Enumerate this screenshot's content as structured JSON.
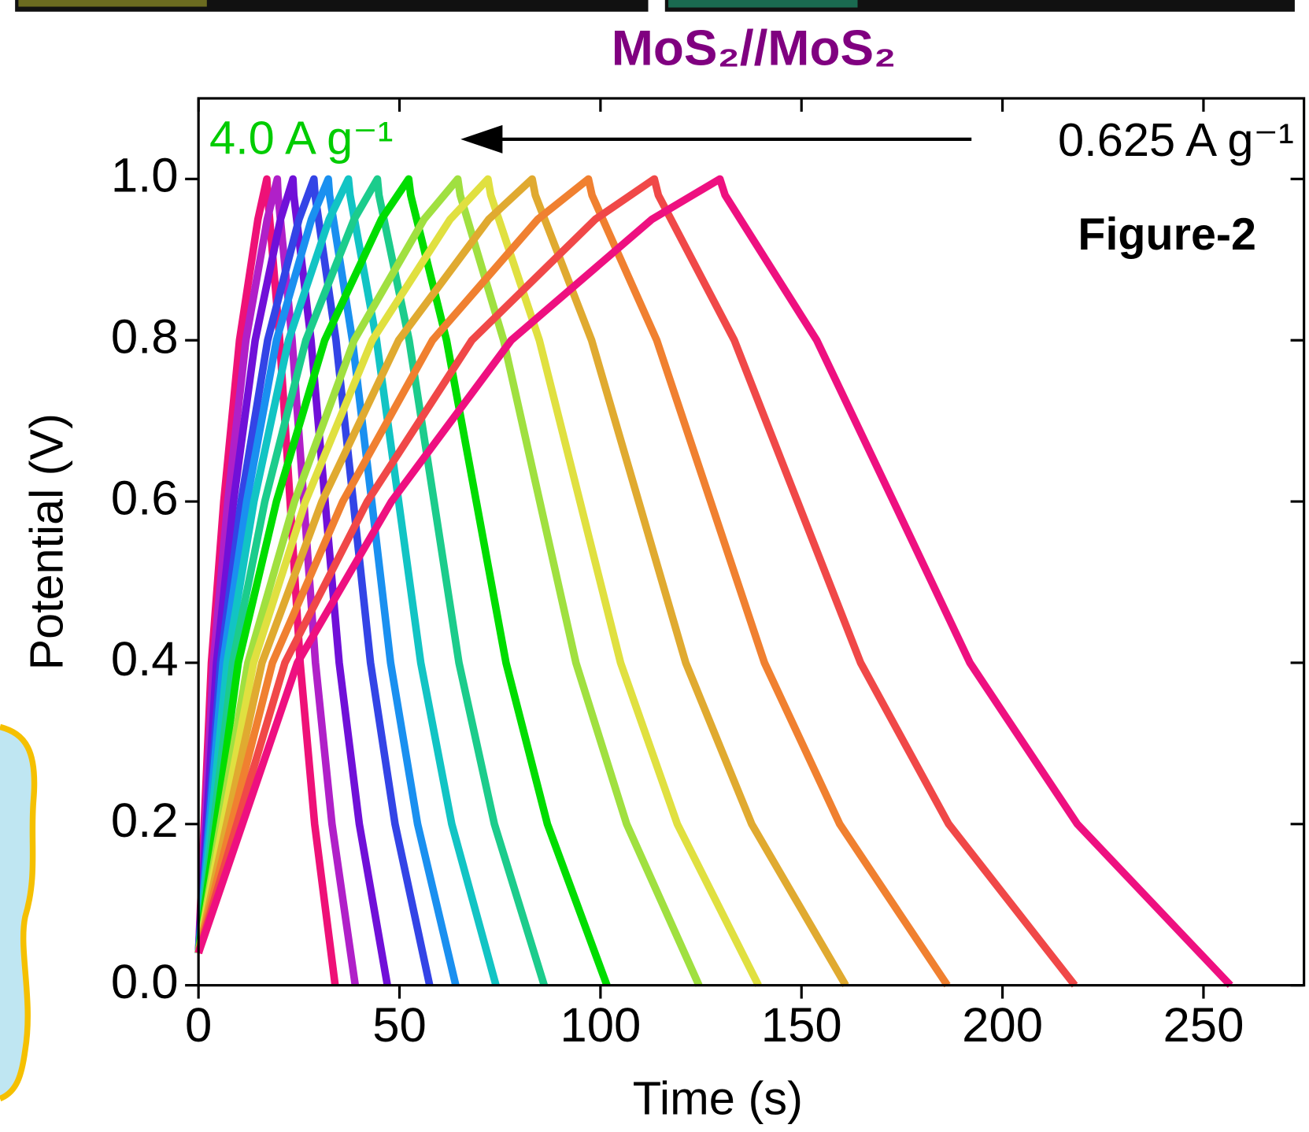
{
  "chart_data": {
    "type": "line",
    "title": "MoS₂//MoS₂",
    "xlabel": "Time (s)",
    "ylabel": "Potential (V)",
    "annotations": [
      "4.0 A g⁻¹",
      "0.625 A g⁻¹",
      "Figure-2"
    ],
    "xlim": [
      0,
      275
    ],
    "xticks": [
      0,
      50,
      100,
      150,
      200,
      250
    ],
    "ylim": [
      0,
      1.1
    ],
    "yticks": [
      {
        "value": 0,
        "label": "0.0"
      },
      0.2,
      0.4,
      0.6,
      0.8,
      {
        "value": 1,
        "label": "1.0"
      }
    ],
    "series": [
      {
        "color": "#ee1177",
        "x": [
          0,
          3.2,
          6.3,
          10.2,
          14.8,
          17,
          17.2,
          20.2,
          22.8,
          25.3,
          28.9,
          34
        ],
        "values": [
          0.04,
          0.4,
          0.6,
          0.8,
          0.95,
          1,
          0.98,
          0.8,
          0.6,
          0.4,
          0.2,
          0
        ]
      },
      {
        "color": "#b020c8",
        "x": [
          0,
          3.7,
          7.3,
          11.8,
          17.1,
          19.6,
          19.8,
          23.3,
          26.2,
          29.1,
          33.2,
          39
        ],
        "values": [
          0.04,
          0.4,
          0.6,
          0.8,
          0.95,
          1,
          0.98,
          0.8,
          0.6,
          0.4,
          0.2,
          0
        ]
      },
      {
        "color": "#7010d8",
        "x": [
          0,
          4.5,
          8.7,
          14.1,
          20.4,
          23.5,
          23.7,
          28,
          31.5,
          35,
          40,
          47
        ],
        "values": [
          0.04,
          0.4,
          0.6,
          0.8,
          0.95,
          1,
          0.98,
          0.8,
          0.6,
          0.4,
          0.2,
          0
        ]
      },
      {
        "color": "#3344e6",
        "x": [
          0,
          5.5,
          10.6,
          17.2,
          25,
          28.7,
          29,
          34.2,
          38.5,
          42.8,
          48.9,
          57.5
        ],
        "values": [
          0.04,
          0.4,
          0.6,
          0.8,
          0.95,
          1,
          0.98,
          0.8,
          0.6,
          0.4,
          0.2,
          0
        ]
      },
      {
        "color": "#1a90f0",
        "x": [
          0,
          6.1,
          12,
          19.4,
          28.1,
          32.3,
          32.6,
          38.3,
          43.1,
          47.8,
          54.5,
          64
        ],
        "values": [
          0.04,
          0.4,
          0.6,
          0.8,
          0.95,
          1,
          0.98,
          0.8,
          0.6,
          0.4,
          0.2,
          0
        ]
      },
      {
        "color": "#12c4c4",
        "x": [
          0,
          7.1,
          13.8,
          22.4,
          32.5,
          37.3,
          37.7,
          44.3,
          49.8,
          55.3,
          63,
          74
        ],
        "values": [
          0.04,
          0.4,
          0.6,
          0.8,
          0.95,
          1,
          0.98,
          0.8,
          0.6,
          0.4,
          0.2,
          0
        ]
      },
      {
        "color": "#1ccc8c",
        "x": [
          0,
          8.5,
          16.5,
          26.7,
          38.7,
          44.5,
          44.9,
          52.4,
          58.6,
          64.8,
          73.6,
          86
        ],
        "values": [
          0.04,
          0.4,
          0.6,
          0.8,
          0.95,
          1,
          0.98,
          0.8,
          0.6,
          0.4,
          0.2,
          0
        ]
      },
      {
        "color": "#00dd00",
        "x": [
          0,
          9.9,
          19.4,
          31.4,
          45.5,
          52.3,
          52.8,
          61.7,
          69.1,
          76.5,
          86.8,
          101.6
        ],
        "values": [
          0.04,
          0.4,
          0.6,
          0.8,
          0.95,
          1,
          0.98,
          0.8,
          0.6,
          0.4,
          0.2,
          0
        ]
      },
      {
        "color": "#a0e040",
        "x": [
          0,
          12.3,
          23.9,
          38.7,
          56.1,
          64.5,
          65.1,
          75.9,
          84.9,
          93.9,
          106.5,
          124.5
        ],
        "values": [
          0.04,
          0.4,
          0.6,
          0.8,
          0.95,
          1,
          0.98,
          0.8,
          0.6,
          0.4,
          0.2,
          0
        ]
      },
      {
        "color": "#e0e040",
        "x": [
          0,
          13.7,
          26.6,
          43.2,
          62.6,
          72,
          72.7,
          84.8,
          94.9,
          105,
          119.1,
          139.3
        ],
        "values": [
          0.04,
          0.4,
          0.6,
          0.8,
          0.95,
          1,
          0.98,
          0.8,
          0.6,
          0.4,
          0.2,
          0
        ]
      },
      {
        "color": "#e0aa30",
        "x": [
          0,
          15.8,
          30.7,
          49.8,
          72.2,
          83,
          83.8,
          97.8,
          109.5,
          121.2,
          137.6,
          161
        ],
        "values": [
          0.04,
          0.4,
          0.6,
          0.8,
          0.95,
          1,
          0.98,
          0.8,
          0.6,
          0.4,
          0.2,
          0
        ]
      },
      {
        "color": "#f08030",
        "x": [
          0,
          18.4,
          35.9,
          58.2,
          84.4,
          97,
          97.9,
          114,
          127.4,
          140.8,
          159.5,
          186.3
        ],
        "values": [
          0.04,
          0.4,
          0.6,
          0.8,
          0.95,
          1,
          0.98,
          0.8,
          0.6,
          0.4,
          0.2,
          0
        ]
      },
      {
        "color": "#f04848",
        "x": [
          0,
          21.5,
          42,
          68,
          98.7,
          113.4,
          114.4,
          133.3,
          149,
          164.7,
          186.6,
          218
        ],
        "values": [
          0.04,
          0.4,
          0.6,
          0.8,
          0.95,
          1,
          0.98,
          0.8,
          0.6,
          0.4,
          0.2,
          0
        ]
      },
      {
        "color": "#ee1080",
        "x": [
          0,
          24.6,
          48,
          77.8,
          112.8,
          129.7,
          131,
          153.8,
          172.9,
          191.9,
          218.6,
          256.7
        ],
        "values": [
          0.04,
          0.4,
          0.6,
          0.8,
          0.95,
          1,
          0.98,
          0.8,
          0.6,
          0.4,
          0.2,
          0
        ]
      }
    ]
  }
}
